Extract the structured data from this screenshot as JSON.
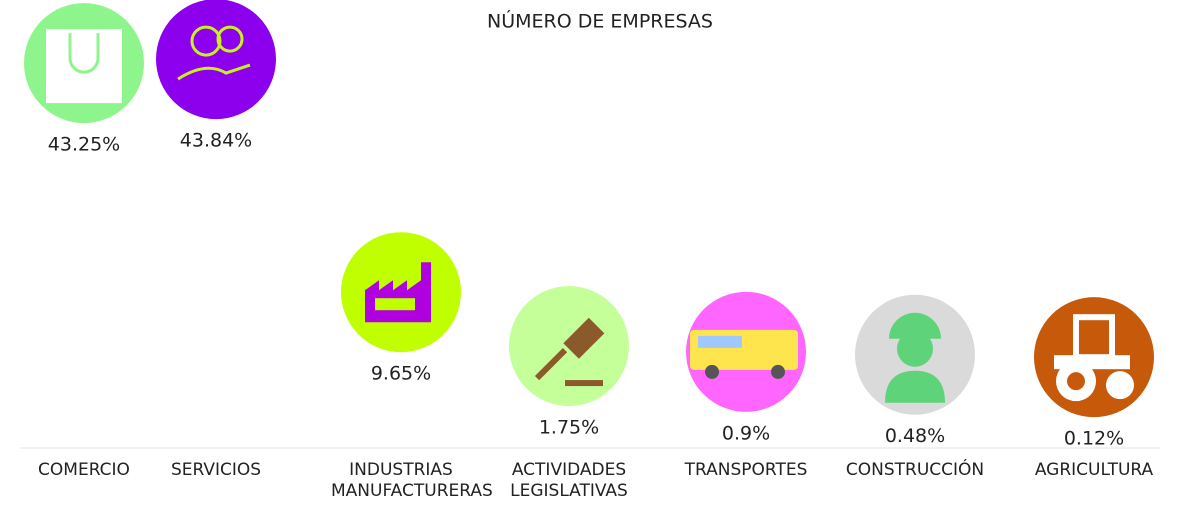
{
  "chart_data": {
    "type": "bar",
    "title": "NÚMERO DE EMPRESAS",
    "categories": [
      "COMERCIO",
      "SERVICIOS",
      "INDUSTRIAS MANUFACTURERAS",
      "ACTIVIDADES LEGISLATIVAS",
      "TRANSPORTES",
      "CONSTRUCCIÓN",
      "AGRICULTURA"
    ],
    "values": [
      43.25,
      43.84,
      9.65,
      1.75,
      0.9,
      0.48,
      0.12
    ],
    "value_labels": [
      "43.25%",
      "43.84%",
      "9.65%",
      "1.75%",
      "0.9%",
      "0.48%",
      "0.12%"
    ],
    "colors": [
      "#8ef58c",
      "#8c00ee",
      "#bfff00",
      "#c4ff9a",
      "#ff66ff",
      "#dadada",
      "#c65a0a"
    ],
    "ylim": [
      0,
      44
    ]
  }
}
